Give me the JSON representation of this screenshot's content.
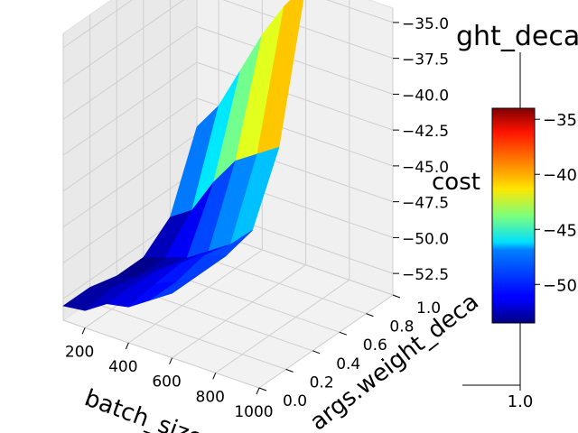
{
  "chart_data": {
    "type": "surface3d",
    "title": "ght_deca",
    "xlabel": "batch_size",
    "ylabel": "args.weight_deca",
    "zlabel": "cost",
    "x_ticks": [
      "200",
      "400",
      "600",
      "800",
      "1000"
    ],
    "y_ticks": [
      "0.0",
      "0.2",
      "0.4",
      "0.6",
      "0.8",
      "1.0"
    ],
    "z_ticks": [
      "−35.0",
      "−37.5",
      "−40.0",
      "−42.5",
      "−45.0",
      "−47.5",
      "−50.0",
      "−52.5"
    ],
    "xlim": [
      100,
      1000
    ],
    "ylim": [
      0.0,
      1.0
    ],
    "zlim": [
      -54,
      -34
    ],
    "colormap": "jet",
    "colorbar": {
      "ticks": [
        "−35",
        "−40",
        "−45",
        "−50"
      ],
      "tick_values": [
        -35,
        -40,
        -45,
        -50
      ],
      "range": [
        -53.5,
        -34
      ],
      "lower_axis_tick": "1.0"
    },
    "grid": true,
    "surface": {
      "x": [
        100,
        200,
        300,
        400,
        500,
        600
      ],
      "y": [
        0.0,
        0.2,
        0.4,
        0.6,
        0.8,
        1.0
      ],
      "z": [
        [
          -53.0,
          -52.8,
          -51.8,
          -51.5,
          -50.5,
          -49.5
        ],
        [
          -53.0,
          -52.5,
          -51.8,
          -51.2,
          -50.5,
          -49.5
        ],
        [
          -53.5,
          -53.0,
          -52.0,
          -51.0,
          -50.0,
          -49.5
        ],
        [
          -53.5,
          -53.0,
          -52.5,
          -51.5,
          -50.5,
          -49.0
        ],
        [
          -52.0,
          -51.0,
          -48.5,
          -46.5,
          -45.5,
          -44.5
        ],
        [
          -47.0,
          -45.0,
          -42.0,
          -39.0,
          -36.5,
          -34.5
        ]
      ]
    }
  }
}
